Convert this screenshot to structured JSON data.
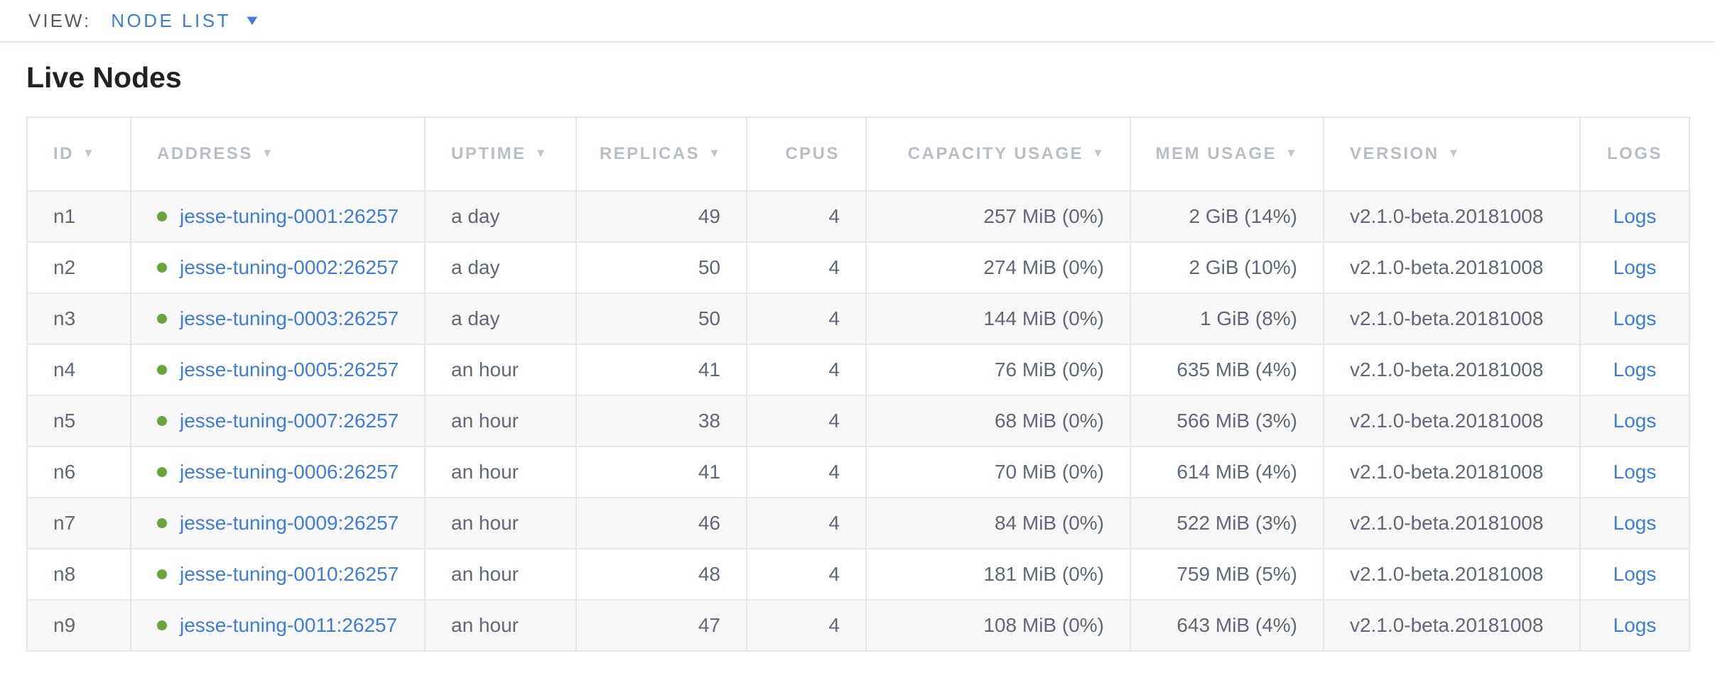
{
  "view_bar": {
    "label": "VIEW:",
    "selected": "NODE LIST"
  },
  "page": {
    "title": "Live Nodes"
  },
  "icons": {
    "dropdown_caret": "▼",
    "sort_desc": "▼",
    "live_status_dot": "green-circle"
  },
  "colors": {
    "link_blue": "#3e7cd9",
    "live_dot_green": "#68a53c",
    "header_gray": "#b9bec5",
    "cell_text_slate": "#5f6878",
    "row_stripe": "#f7f7f8",
    "title_color": "#202326"
  },
  "table": {
    "columns": [
      {
        "key": "id",
        "label": "ID",
        "sortable": true,
        "align": "left"
      },
      {
        "key": "address",
        "label": "ADDRESS",
        "sortable": true,
        "align": "left"
      },
      {
        "key": "uptime",
        "label": "UPTIME",
        "sortable": true,
        "align": "left"
      },
      {
        "key": "replicas",
        "label": "REPLICAS",
        "sortable": true,
        "align": "right"
      },
      {
        "key": "cpus",
        "label": "CPUS",
        "sortable": false,
        "align": "right"
      },
      {
        "key": "capacity",
        "label": "CAPACITY USAGE",
        "sortable": true,
        "align": "right"
      },
      {
        "key": "mem",
        "label": "MEM USAGE",
        "sortable": true,
        "align": "right"
      },
      {
        "key": "version",
        "label": "VERSION",
        "sortable": true,
        "align": "left"
      },
      {
        "key": "logs",
        "label": "LOGS",
        "sortable": false,
        "align": "center"
      }
    ],
    "rows": [
      {
        "id": "n1",
        "address": "jesse-tuning-0001:26257",
        "uptime": "a day",
        "replicas": "49",
        "cpus": "4",
        "capacity": "257 MiB (0%)",
        "mem": "2 GiB (14%)",
        "version": "v2.1.0-beta.20181008",
        "logs": "Logs"
      },
      {
        "id": "n2",
        "address": "jesse-tuning-0002:26257",
        "uptime": "a day",
        "replicas": "50",
        "cpus": "4",
        "capacity": "274 MiB (0%)",
        "mem": "2 GiB (10%)",
        "version": "v2.1.0-beta.20181008",
        "logs": "Logs"
      },
      {
        "id": "n3",
        "address": "jesse-tuning-0003:26257",
        "uptime": "a day",
        "replicas": "50",
        "cpus": "4",
        "capacity": "144 MiB (0%)",
        "mem": "1 GiB (8%)",
        "version": "v2.1.0-beta.20181008",
        "logs": "Logs"
      },
      {
        "id": "n4",
        "address": "jesse-tuning-0005:26257",
        "uptime": "an hour",
        "replicas": "41",
        "cpus": "4",
        "capacity": "76 MiB (0%)",
        "mem": "635 MiB (4%)",
        "version": "v2.1.0-beta.20181008",
        "logs": "Logs"
      },
      {
        "id": "n5",
        "address": "jesse-tuning-0007:26257",
        "uptime": "an hour",
        "replicas": "38",
        "cpus": "4",
        "capacity": "68 MiB (0%)",
        "mem": "566 MiB (3%)",
        "version": "v2.1.0-beta.20181008",
        "logs": "Logs"
      },
      {
        "id": "n6",
        "address": "jesse-tuning-0006:26257",
        "uptime": "an hour",
        "replicas": "41",
        "cpus": "4",
        "capacity": "70 MiB (0%)",
        "mem": "614 MiB (4%)",
        "version": "v2.1.0-beta.20181008",
        "logs": "Logs"
      },
      {
        "id": "n7",
        "address": "jesse-tuning-0009:26257",
        "uptime": "an hour",
        "replicas": "46",
        "cpus": "4",
        "capacity": "84 MiB (0%)",
        "mem": "522 MiB (3%)",
        "version": "v2.1.0-beta.20181008",
        "logs": "Logs"
      },
      {
        "id": "n8",
        "address": "jesse-tuning-0010:26257",
        "uptime": "an hour",
        "replicas": "48",
        "cpus": "4",
        "capacity": "181 MiB (0%)",
        "mem": "759 MiB (5%)",
        "version": "v2.1.0-beta.20181008",
        "logs": "Logs"
      },
      {
        "id": "n9",
        "address": "jesse-tuning-0011:26257",
        "uptime": "an hour",
        "replicas": "47",
        "cpus": "4",
        "capacity": "108 MiB (0%)",
        "mem": "643 MiB (4%)",
        "version": "v2.1.0-beta.20181008",
        "logs": "Logs"
      }
    ]
  }
}
